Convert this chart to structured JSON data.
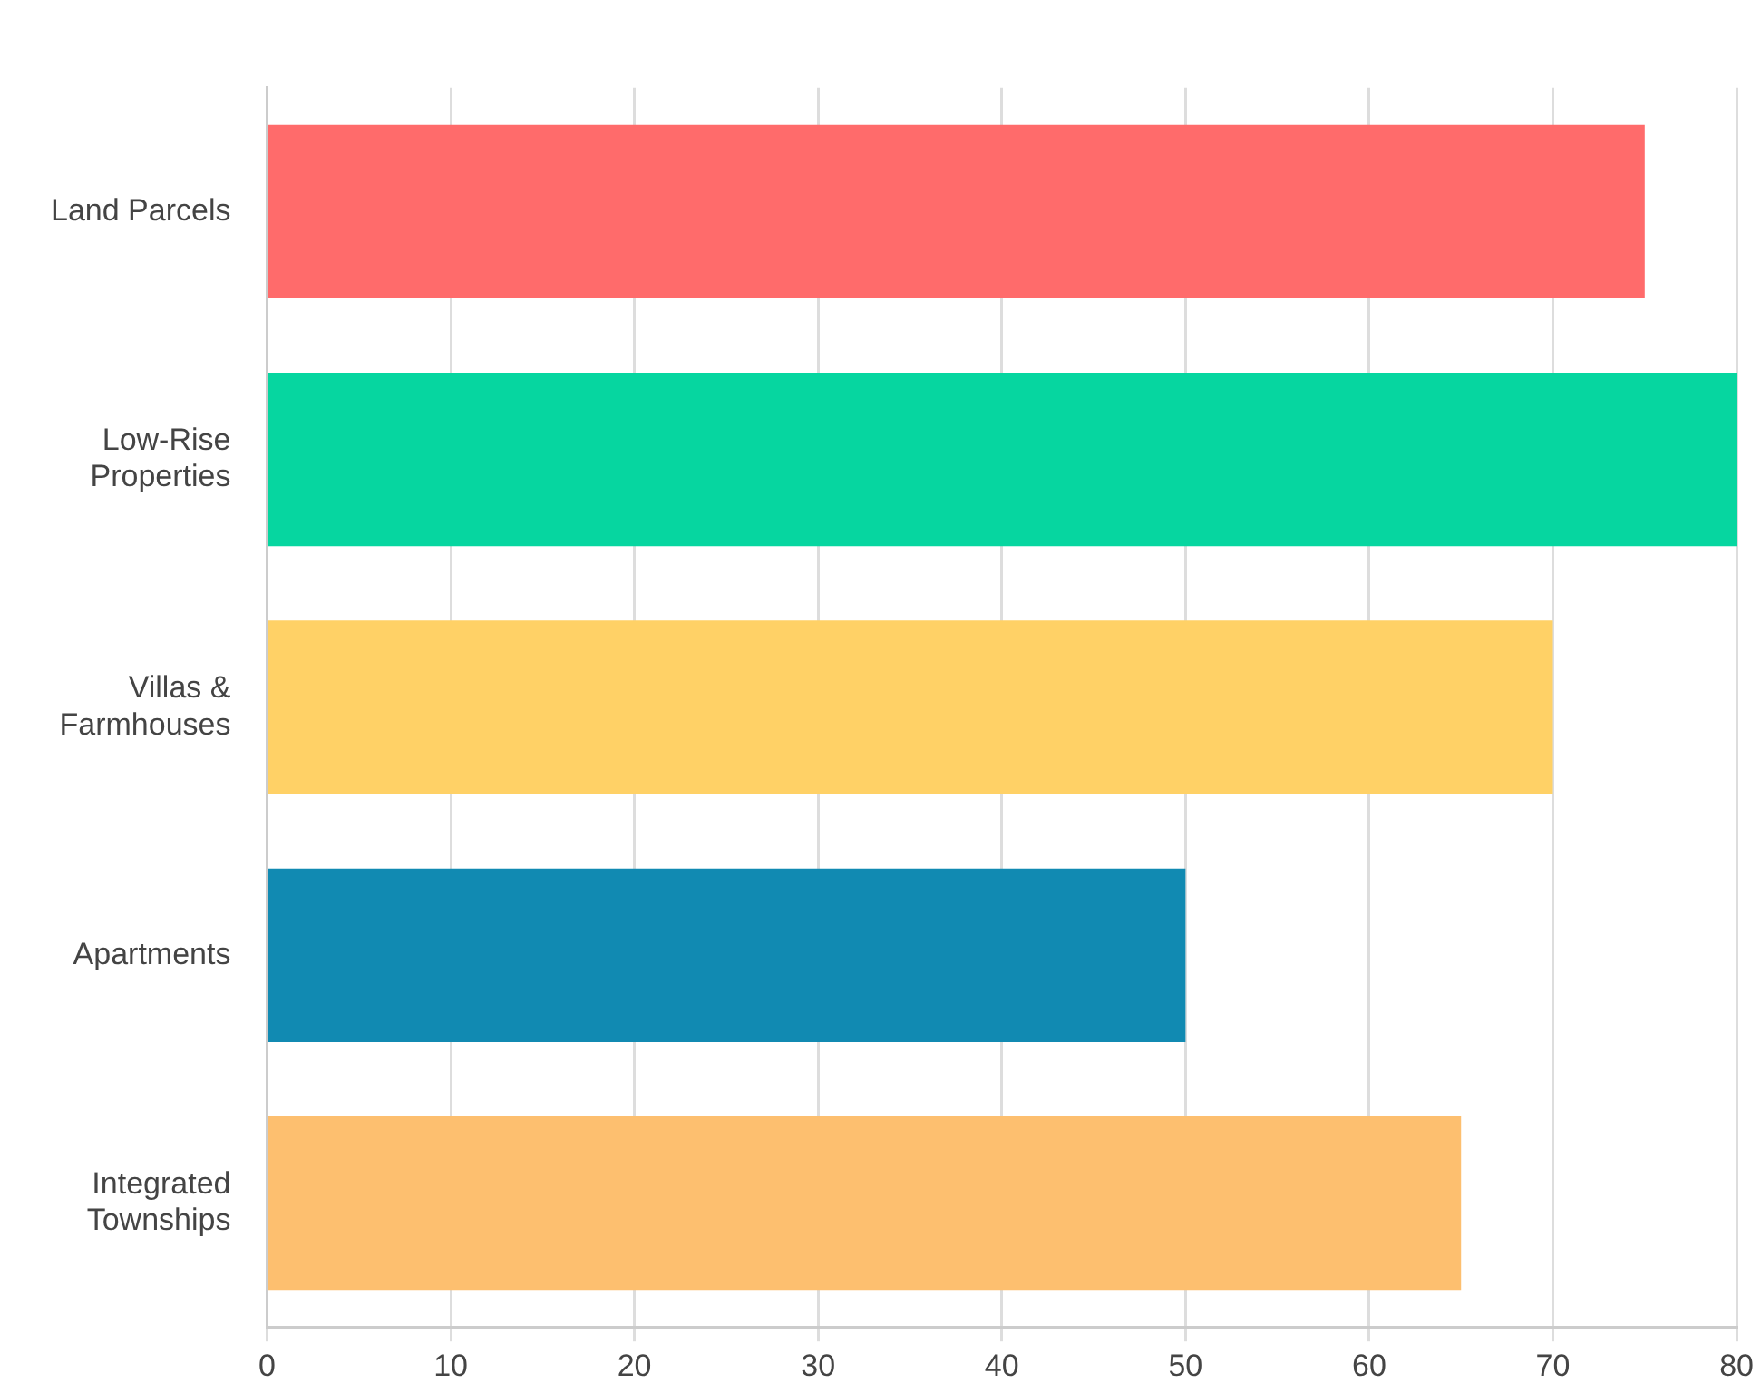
{
  "chart_data": {
    "type": "bar",
    "orientation": "horizontal",
    "categories": [
      "Land Parcels",
      "Low-Rise Properties",
      "Villas & Farmhouses",
      "Apartments",
      "Integrated Townships"
    ],
    "values": [
      75,
      80,
      70,
      50,
      65
    ],
    "colors": [
      "#ff6b6b",
      "#06d6a0",
      "#ffd166",
      "#118ab2",
      "#fdbf6f"
    ],
    "xlim": [
      0,
      80
    ],
    "xticks": [
      0,
      10,
      20,
      30,
      40,
      50,
      60,
      70,
      80
    ],
    "grid": "x"
  }
}
